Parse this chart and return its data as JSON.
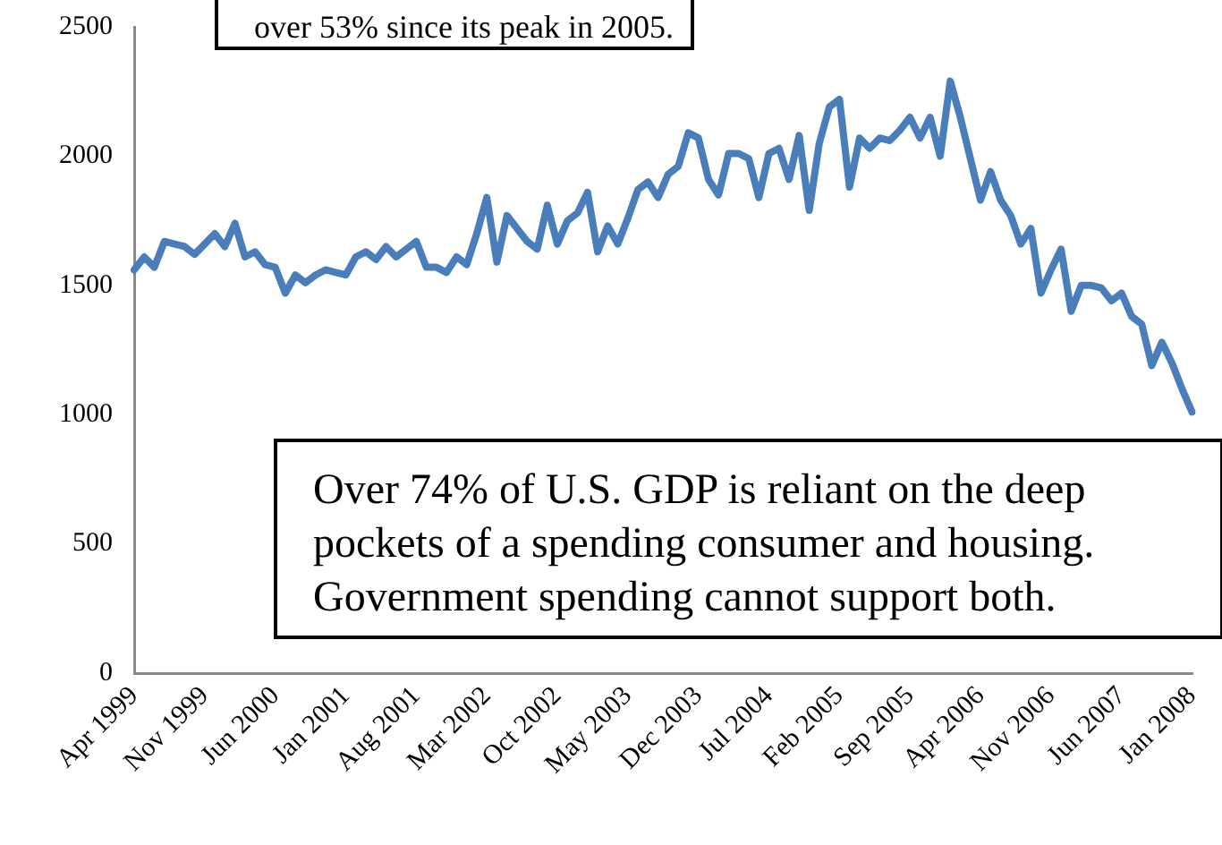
{
  "chart_data": {
    "type": "line",
    "categories": [
      "Apr 1999",
      null,
      null,
      null,
      null,
      null,
      null,
      "Nov 1999",
      null,
      null,
      null,
      null,
      null,
      null,
      "Jun 2000",
      null,
      null,
      null,
      null,
      null,
      null,
      "Jan 2001",
      null,
      null,
      null,
      null,
      null,
      null,
      "Aug 2001",
      null,
      null,
      null,
      null,
      null,
      null,
      "Mar 2002",
      null,
      null,
      null,
      null,
      null,
      null,
      "Oct 2002",
      null,
      null,
      null,
      null,
      null,
      null,
      "May 2003",
      null,
      null,
      null,
      null,
      null,
      null,
      "Dec 2003",
      null,
      null,
      null,
      null,
      null,
      null,
      "Jul 2004",
      null,
      null,
      null,
      null,
      null,
      null,
      "Feb 2005",
      null,
      null,
      null,
      null,
      null,
      null,
      "Sep 2005",
      null,
      null,
      null,
      null,
      null,
      null,
      "Apr 2006",
      null,
      null,
      null,
      null,
      null,
      null,
      "Nov 2006",
      null,
      null,
      null,
      null,
      null,
      null,
      "Jun 2007",
      null,
      null,
      null,
      null,
      null,
      null,
      "Jan 2008"
    ],
    "series": [
      {
        "color": "#4a7ebb",
        "values": [
          1560,
          1610,
          1570,
          1670,
          1660,
          1650,
          1620,
          1660,
          1700,
          1650,
          1740,
          1610,
          1630,
          1580,
          1570,
          1470,
          1540,
          1510,
          1540,
          1560,
          1550,
          1540,
          1610,
          1630,
          1600,
          1650,
          1610,
          1640,
          1670,
          1570,
          1570,
          1550,
          1610,
          1580,
          1700,
          1840,
          1590,
          1770,
          1720,
          1670,
          1640,
          1810,
          1660,
          1750,
          1780,
          1860,
          1630,
          1730,
          1660,
          1760,
          1870,
          1900,
          1840,
          1930,
          1960,
          2090,
          2070,
          1910,
          1850,
          2010,
          2010,
          1990,
          1840,
          2010,
          2030,
          1910,
          2080,
          1790,
          2050,
          2190,
          2220,
          1880,
          2070,
          2030,
          2070,
          2060,
          2100,
          2150,
          2070,
          2150,
          2000,
          2290,
          2150,
          1990,
          1830,
          1940,
          1830,
          1770,
          1660,
          1720,
          1470,
          1560,
          1640,
          1400,
          1500,
          1500,
          1490,
          1440,
          1470,
          1380,
          1350,
          1190,
          1280,
          1200,
          1100,
          1010
        ]
      }
    ],
    "ylim": [
      0,
      2500
    ],
    "yticks": [
      0,
      500,
      1000,
      1500,
      2000,
      2500
    ],
    "grid": false,
    "legend": false,
    "marker": "none",
    "line_style": "solid",
    "annotations": [
      "over 53% since its peak in 2005.",
      "Over 74% of U.S. GDP is reliant on the deep pockets of a spending consumer and housing. Government spending cannot support both."
    ]
  }
}
